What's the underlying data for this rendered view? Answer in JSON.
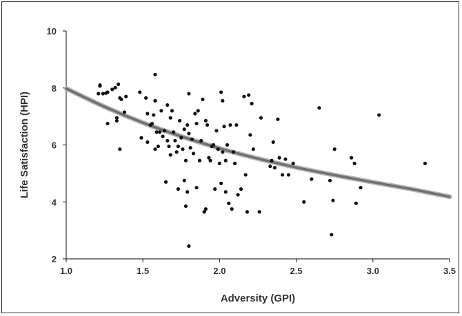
{
  "chart_data": {
    "type": "scatter",
    "xlabel": "Adversity (GPI)",
    "ylabel": "Life Satisfaction (HPI)",
    "xlim": [
      1.0,
      3.5
    ],
    "ylim": [
      2,
      10
    ],
    "x_ticks": [
      "1.0",
      "1.5",
      "2.0",
      "2.5",
      "3.0",
      "3.5"
    ],
    "y_ticks": [
      "2",
      "4",
      "6",
      "8",
      "10"
    ],
    "x_tick_values": [
      1.0,
      1.5,
      2.0,
      2.5,
      3.0,
      3.5
    ],
    "y_tick_values": [
      2,
      4,
      6,
      8,
      10
    ],
    "grid": false,
    "point_color": "#111111",
    "trend_color": "#707070",
    "trend_line": {
      "type": "curve",
      "x": [
        1.0,
        1.25,
        1.5,
        1.75,
        2.0,
        2.25,
        2.5,
        2.75,
        3.0,
        3.25,
        3.5
      ],
      "y": [
        7.98,
        7.34,
        6.78,
        6.3,
        5.88,
        5.52,
        5.21,
        4.94,
        4.69,
        4.45,
        4.18
      ]
    },
    "points": [
      [
        1.21,
        7.8
      ],
      [
        1.22,
        8.07
      ],
      [
        1.22,
        8.1
      ],
      [
        1.24,
        7.8
      ],
      [
        1.26,
        7.82
      ],
      [
        1.27,
        7.85
      ],
      [
        1.27,
        6.75
      ],
      [
        1.3,
        7.95
      ],
      [
        1.32,
        8.01
      ],
      [
        1.33,
        6.95
      ],
      [
        1.33,
        6.85
      ],
      [
        1.34,
        8.13
      ],
      [
        1.35,
        7.65
      ],
      [
        1.35,
        5.85
      ],
      [
        1.36,
        7.6
      ],
      [
        1.38,
        7.15
      ],
      [
        1.39,
        7.7
      ],
      [
        1.48,
        7.85
      ],
      [
        1.49,
        6.25
      ],
      [
        1.52,
        7.65
      ],
      [
        1.53,
        7.1
      ],
      [
        1.53,
        6.1
      ],
      [
        1.55,
        6.7
      ],
      [
        1.56,
        6.75
      ],
      [
        1.57,
        7.05
      ],
      [
        1.58,
        8.47
      ],
      [
        1.58,
        7.55
      ],
      [
        1.58,
        5.85
      ],
      [
        1.59,
        6.45
      ],
      [
        1.6,
        5.95
      ],
      [
        1.61,
        6.45
      ],
      [
        1.62,
        7.2
      ],
      [
        1.63,
        6.3
      ],
      [
        1.64,
        6.5
      ],
      [
        1.65,
        4.7
      ],
      [
        1.66,
        7.4
      ],
      [
        1.66,
        6.15
      ],
      [
        1.67,
        5.95
      ],
      [
        1.68,
        6.95
      ],
      [
        1.68,
        5.65
      ],
      [
        1.69,
        7.2
      ],
      [
        1.7,
        6.45
      ],
      [
        1.71,
        6.15
      ],
      [
        1.72,
        5.75
      ],
      [
        1.73,
        5.95
      ],
      [
        1.73,
        4.45
      ],
      [
        1.74,
        6.85
      ],
      [
        1.75,
        6.25
      ],
      [
        1.76,
        5.85
      ],
      [
        1.77,
        6.55
      ],
      [
        1.77,
        4.75
      ],
      [
        1.78,
        3.85
      ],
      [
        1.78,
        5.45
      ],
      [
        1.79,
        6.7
      ],
      [
        1.79,
        4.35
      ],
      [
        1.8,
        7.8
      ],
      [
        1.8,
        6.4
      ],
      [
        1.8,
        2.45
      ],
      [
        1.81,
        5.9
      ],
      [
        1.82,
        6.2
      ],
      [
        1.83,
        5.7
      ],
      [
        1.84,
        7.1
      ],
      [
        1.85,
        6.75
      ],
      [
        1.85,
        4.5
      ],
      [
        1.86,
        7.2
      ],
      [
        1.87,
        5.45
      ],
      [
        1.88,
        6.15
      ],
      [
        1.89,
        7.6
      ],
      [
        1.9,
        3.65
      ],
      [
        1.91,
        6.85
      ],
      [
        1.91,
        3.75
      ],
      [
        1.92,
        6.7
      ],
      [
        1.93,
        5.55
      ],
      [
        1.94,
        5.45
      ],
      [
        1.95,
        5.95
      ],
      [
        1.96,
        6.0
      ],
      [
        1.97,
        4.45
      ],
      [
        1.98,
        6.5
      ],
      [
        1.99,
        5.85
      ],
      [
        2.0,
        5.35
      ],
      [
        2.01,
        7.85
      ],
      [
        2.01,
        4.65
      ],
      [
        2.02,
        7.55
      ],
      [
        2.02,
        5.75
      ],
      [
        2.03,
        6.65
      ],
      [
        2.04,
        5.45
      ],
      [
        2.04,
        4.35
      ],
      [
        2.05,
        6.0
      ],
      [
        2.06,
        3.95
      ],
      [
        2.07,
        6.7
      ],
      [
        2.08,
        3.75
      ],
      [
        2.09,
        5.75
      ],
      [
        2.1,
        5.35
      ],
      [
        2.11,
        6.7
      ],
      [
        2.12,
        4.25
      ],
      [
        2.14,
        4.45
      ],
      [
        2.16,
        7.7
      ],
      [
        2.17,
        4.95
      ],
      [
        2.18,
        3.65
      ],
      [
        2.19,
        7.75
      ],
      [
        2.2,
        6.35
      ],
      [
        2.21,
        7.45
      ],
      [
        2.22,
        5.85
      ],
      [
        2.26,
        3.65
      ],
      [
        2.27,
        6.95
      ],
      [
        2.33,
        5.25
      ],
      [
        2.34,
        5.45
      ],
      [
        2.35,
        6.1
      ],
      [
        2.36,
        5.2
      ],
      [
        2.38,
        6.9
      ],
      [
        2.39,
        5.55
      ],
      [
        2.41,
        4.95
      ],
      [
        2.43,
        5.5
      ],
      [
        2.45,
        4.95
      ],
      [
        2.48,
        5.35
      ],
      [
        2.55,
        4.0
      ],
      [
        2.6,
        4.8
      ],
      [
        2.65,
        7.3
      ],
      [
        2.72,
        4.75
      ],
      [
        2.73,
        2.85
      ],
      [
        2.74,
        4.05
      ],
      [
        2.75,
        5.85
      ],
      [
        2.86,
        5.55
      ],
      [
        2.88,
        5.35
      ],
      [
        2.89,
        3.95
      ],
      [
        2.92,
        4.5
      ],
      [
        3.04,
        7.05
      ],
      [
        3.34,
        5.35
      ]
    ]
  }
}
